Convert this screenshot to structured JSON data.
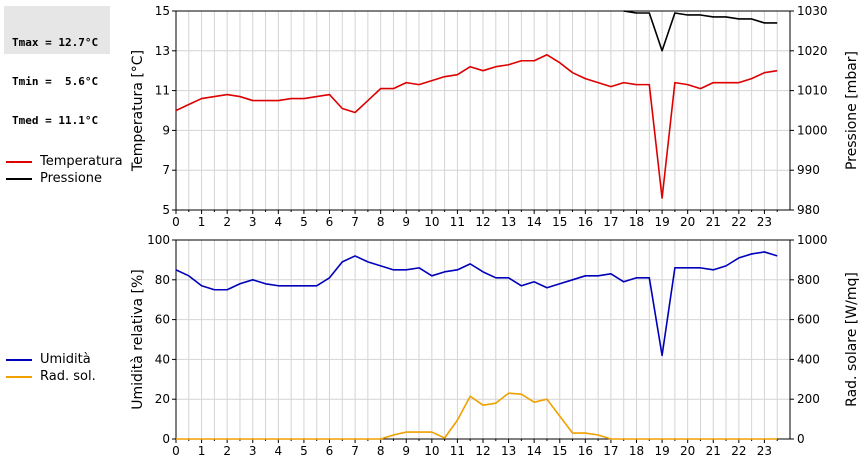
{
  "stats": {
    "tmax": "Tmax = 12.7°C",
    "tmin": "Tmin =  5.6°C",
    "tmed": "Tmed = 11.1°C"
  },
  "colors": {
    "temperature": "#dd0000",
    "pressure": "#000000",
    "humidity": "#0000bb",
    "radiation": "#f0a000",
    "grid": "#d4d4d4"
  },
  "chart_data": [
    {
      "type": "line",
      "x_ticks": [
        "0",
        "1",
        "2",
        "3",
        "4",
        "5",
        "6",
        "7",
        "8",
        "9",
        "10",
        "11",
        "12",
        "13",
        "14",
        "15",
        "16",
        "17",
        "18",
        "19",
        "20",
        "21",
        "22",
        "23"
      ],
      "xlim": [
        0,
        24
      ],
      "grid": true,
      "ylabel_left": "Temperatura [°C]",
      "ylabel_right": "Pressione [mbar]",
      "ylim_left": [
        5,
        15
      ],
      "ylim_right": [
        980,
        1030
      ],
      "yticks_left": [
        "5",
        "7",
        "9",
        "11",
        "13",
        "15"
      ],
      "yticks_right": [
        "980",
        "990",
        "1000",
        "1010",
        "1020",
        "1030"
      ],
      "legend": [
        "Temperatura",
        "Pressione"
      ],
      "series": [
        {
          "name": "Temperatura",
          "axis": "left",
          "x": [
            0,
            0.5,
            1,
            1.5,
            2,
            2.5,
            3,
            3.5,
            4,
            4.5,
            5,
            5.5,
            6,
            6.5,
            7,
            7.5,
            8,
            8.5,
            9,
            9.5,
            10,
            10.5,
            11,
            11.5,
            12,
            12.5,
            13,
            13.5,
            14,
            14.5,
            15,
            15.5,
            16,
            16.5,
            17,
            17.5,
            18,
            18.5,
            19,
            19.5,
            20,
            20.5,
            21,
            21.5,
            22,
            22.5,
            23,
            23.5
          ],
          "values": [
            10.0,
            10.3,
            10.6,
            10.7,
            10.8,
            10.7,
            10.5,
            10.5,
            10.5,
            10.6,
            10.6,
            10.7,
            10.8,
            10.1,
            9.9,
            10.5,
            11.1,
            11.1,
            11.4,
            11.3,
            11.5,
            11.7,
            11.8,
            12.2,
            12.0,
            12.2,
            12.3,
            12.5,
            12.5,
            12.8,
            12.4,
            11.9,
            11.6,
            11.4,
            11.2,
            11.4,
            11.3,
            11.3,
            5.6,
            11.4,
            11.3,
            11.1,
            11.4,
            11.4,
            11.4,
            11.6,
            11.9,
            12.0
          ]
        },
        {
          "name": "Pressione",
          "axis": "right",
          "x": [
            17.5,
            18,
            18.5,
            19,
            19.5,
            20,
            20.5,
            21,
            21.5,
            22,
            22.5,
            23,
            23.5
          ],
          "values": [
            1030.0,
            1029.5,
            1029.5,
            1020.0,
            1029.5,
            1029.0,
            1029.0,
            1028.5,
            1028.5,
            1028.0,
            1028.0,
            1027.0,
            1027.0
          ]
        }
      ]
    },
    {
      "type": "line",
      "x_ticks": [
        "0",
        "1",
        "2",
        "3",
        "4",
        "5",
        "6",
        "7",
        "8",
        "9",
        "10",
        "11",
        "12",
        "13",
        "14",
        "15",
        "16",
        "17",
        "18",
        "19",
        "20",
        "21",
        "22",
        "23"
      ],
      "xlim": [
        0,
        24
      ],
      "grid": true,
      "ylabel_left": "Umidità relativa [%]",
      "ylabel_right": "Rad. solare [W/mq]",
      "ylim_left": [
        0,
        100
      ],
      "ylim_right": [
        0,
        1000
      ],
      "yticks_left": [
        "0",
        "20",
        "40",
        "60",
        "80",
        "100"
      ],
      "yticks_right": [
        "0",
        "200",
        "400",
        "600",
        "800",
        "1000"
      ],
      "legend": [
        "Umidità",
        "Rad. sol."
      ],
      "series": [
        {
          "name": "Umidità",
          "axis": "left",
          "x": [
            0,
            0.5,
            1,
            1.5,
            2,
            2.5,
            3,
            3.5,
            4,
            4.5,
            5,
            5.5,
            6,
            6.5,
            7,
            7.5,
            8,
            8.5,
            9,
            9.5,
            10,
            10.5,
            11,
            11.5,
            12,
            12.5,
            13,
            13.5,
            14,
            14.5,
            15,
            15.5,
            16,
            16.5,
            17,
            17.5,
            18,
            18.5,
            19,
            19.5,
            20,
            20.5,
            21,
            21.5,
            22,
            22.5,
            23,
            23.5
          ],
          "values": [
            85,
            82,
            77,
            75,
            75,
            78,
            80,
            78,
            77,
            77,
            77,
            77,
            81,
            89,
            92,
            89,
            87,
            85,
            85,
            86,
            82,
            84,
            85,
            88,
            84,
            81,
            81,
            77,
            79,
            76,
            78,
            80,
            82,
            82,
            83,
            79,
            81,
            81,
            42,
            86,
            86,
            86,
            85,
            87,
            91,
            93,
            94,
            92
          ]
        },
        {
          "name": "Rad. sol.",
          "axis": "right",
          "x": [
            0,
            0.5,
            1,
            1.5,
            2,
            2.5,
            3,
            3.5,
            4,
            4.5,
            5,
            5.5,
            6,
            6.5,
            7,
            7.5,
            8,
            8.5,
            9,
            9.5,
            10,
            10.5,
            11,
            11.5,
            12,
            12.5,
            13,
            13.5,
            14,
            14.5,
            15,
            15.5,
            16,
            16.5,
            17,
            17.5,
            18,
            18.5,
            19,
            19.5,
            20,
            20.5,
            21,
            21.5,
            22,
            22.5,
            23,
            23.5
          ],
          "values": [
            0,
            0,
            0,
            0,
            0,
            0,
            0,
            0,
            0,
            0,
            0,
            0,
            0,
            0,
            0,
            0,
            0,
            20,
            35,
            35,
            35,
            5,
            95,
            215,
            170,
            180,
            230,
            225,
            185,
            200,
            115,
            30,
            30,
            20,
            0,
            0,
            0,
            0,
            0,
            0,
            0,
            0,
            0,
            0,
            0,
            0,
            0,
            0
          ]
        }
      ]
    }
  ]
}
